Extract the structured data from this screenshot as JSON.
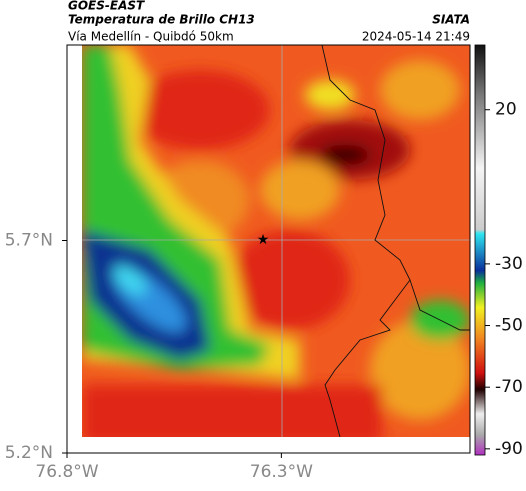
{
  "header": {
    "satellite": "GOES-EAST",
    "title": "Temperatura de Brillo CH13",
    "subtitle": "Vía Medellín - Quibdó 50km",
    "source": "SIATA",
    "timestamp": "2024-05-14 21:49"
  },
  "map": {
    "xlim": [
      -76.8,
      -75.86
    ],
    "ylim": [
      5.2,
      6.16
    ],
    "xticks": [
      {
        "value": -76.8,
        "label": "76.8°W"
      },
      {
        "value": -76.3,
        "label": "76.3°W"
      }
    ],
    "yticks": [
      {
        "value": 5.2,
        "label": "5.2°N"
      },
      {
        "value": 5.7,
        "label": "5.7°N"
      }
    ]
  },
  "colorbar": {
    "lim": [
      -92,
      41
    ],
    "ticks": [
      20,
      -30,
      -50,
      -70,
      -90
    ]
  }
}
